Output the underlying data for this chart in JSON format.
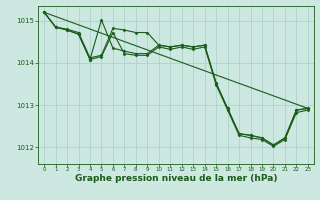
{
  "bg_color": "#cce8e0",
  "grid_color": "#aad4cc",
  "line_color": "#1a5c1a",
  "marker_color": "#1a5c1a",
  "xlabel": "Graphe pression niveau de la mer (hPa)",
  "xlabel_fontsize": 6.5,
  "xlabel_color": "#1a5c1a",
  "tick_color": "#1a5c1a",
  "xlim": [
    -0.5,
    23.5
  ],
  "ylim": [
    1011.6,
    1015.35
  ],
  "yticks": [
    1012,
    1013,
    1014,
    1015
  ],
  "xticks": [
    0,
    1,
    2,
    3,
    4,
    5,
    6,
    7,
    8,
    9,
    10,
    11,
    12,
    13,
    14,
    15,
    16,
    17,
    18,
    19,
    20,
    21,
    22,
    23
  ],
  "line1_x": [
    0,
    1,
    2,
    3,
    4,
    5,
    6,
    7,
    8,
    9,
    10,
    11,
    12,
    13,
    14,
    15,
    16,
    17,
    18,
    19,
    20,
    21,
    22,
    23
  ],
  "line1_y": [
    1015.2,
    1014.85,
    1014.8,
    1014.72,
    1014.12,
    1014.18,
    1014.82,
    1014.78,
    1014.72,
    1014.72,
    1014.42,
    1014.38,
    1014.42,
    1014.38,
    1014.42,
    1013.52,
    1012.92,
    1012.32,
    1012.28,
    1012.22,
    1012.05,
    1012.22,
    1012.88,
    1012.92
  ],
  "line2_x": [
    0,
    1,
    2,
    3,
    4,
    5,
    6,
    7,
    8,
    9,
    10,
    11,
    12,
    13,
    14,
    15,
    16,
    17,
    18,
    19,
    20,
    21,
    22,
    23
  ],
  "line2_y": [
    1015.2,
    1014.85,
    1014.78,
    1014.68,
    1014.08,
    1015.02,
    1014.35,
    1014.28,
    1014.22,
    1014.22,
    1014.42,
    1014.38,
    1014.42,
    1014.38,
    1014.42,
    1013.52,
    1012.92,
    1012.32,
    1012.28,
    1012.22,
    1012.05,
    1012.22,
    1012.88,
    1012.92
  ],
  "line3_x": [
    0,
    23
  ],
  "line3_y": [
    1015.2,
    1012.92
  ],
  "line4_x": [
    0,
    1,
    2,
    3,
    4,
    5,
    6,
    7,
    8,
    9,
    10,
    11,
    12,
    13,
    14,
    15,
    16,
    17,
    18,
    19,
    20,
    21,
    22,
    23
  ],
  "line4_y": [
    1015.2,
    1014.85,
    1014.78,
    1014.68,
    1014.08,
    1014.15,
    1014.72,
    1014.22,
    1014.18,
    1014.18,
    1014.38,
    1014.32,
    1014.38,
    1014.32,
    1014.38,
    1013.48,
    1012.88,
    1012.28,
    1012.22,
    1012.18,
    1012.02,
    1012.18,
    1012.82,
    1012.88
  ]
}
